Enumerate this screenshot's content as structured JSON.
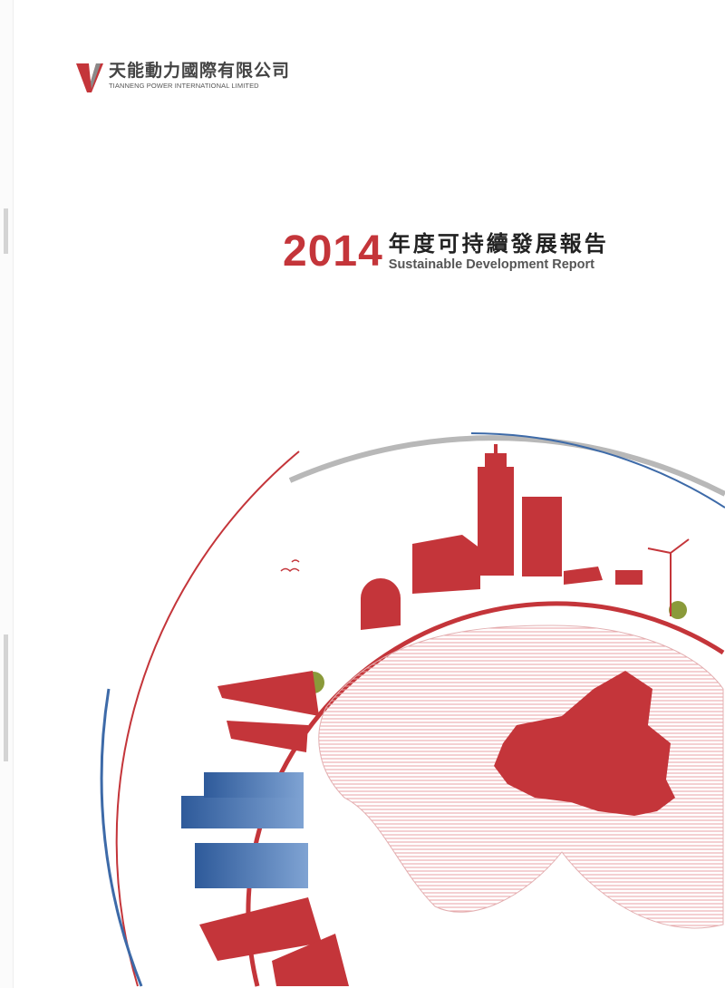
{
  "company": {
    "name_cn": "天能動力國際有限公司",
    "name_en": "TIANNENG POWER INTERNATIONAL LIMITED"
  },
  "report": {
    "year": "2014",
    "title_cn": "年度可持續發展報告",
    "title_en": "Sustainable Development Report"
  },
  "colors": {
    "brand_red": "#c4353a",
    "blue": "#3d6aa8",
    "gray_arc": "#b8b8b8"
  }
}
